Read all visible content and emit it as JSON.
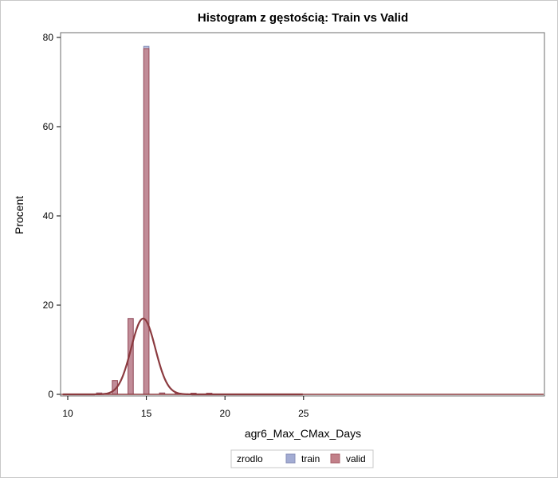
{
  "chart_data": {
    "type": "bar",
    "title": "Histogram z gęstością: Train vs Valid",
    "xlabel": "agr6_Max_CMax_Days",
    "ylabel": "Procent",
    "xlim": [
      9.5,
      25
    ],
    "ylim": [
      0,
      80
    ],
    "x_ticks": [
      10,
      15,
      20,
      25
    ],
    "y_ticks": [
      0,
      20,
      40,
      60,
      80
    ],
    "bin_width": 0.333,
    "legend": {
      "title": "zrodlo",
      "placement": "bottom-center",
      "entries": [
        "train",
        "valid"
      ]
    },
    "series": [
      {
        "name": "train",
        "color": "#a3acd3",
        "bins": [
          {
            "x": 12.0,
            "value": 0.3
          },
          {
            "x": 13.0,
            "value": 3.0
          },
          {
            "x": 14.0,
            "value": 17.0
          },
          {
            "x": 15.0,
            "value": 78.0
          },
          {
            "x": 16.0,
            "value": 0.3
          },
          {
            "x": 17.0,
            "value": 0.1
          },
          {
            "x": 18.0,
            "value": 0.1
          },
          {
            "x": 19.0,
            "value": 0.05
          }
        ]
      },
      {
        "name": "valid",
        "color": "#c28089",
        "bins": [
          {
            "x": 12.0,
            "value": 0.3
          },
          {
            "x": 13.0,
            "value": 3.1
          },
          {
            "x": 14.0,
            "value": 17.0
          },
          {
            "x": 15.0,
            "value": 77.5
          },
          {
            "x": 16.0,
            "value": 0.3
          },
          {
            "x": 17.0,
            "value": 0.1
          },
          {
            "x": 18.0,
            "value": 0.1
          },
          {
            "x": 19.0,
            "value": 0.05
          }
        ]
      }
    ],
    "density": {
      "type": "normal",
      "mean": 14.8,
      "sd": 0.77,
      "peak": 17.0,
      "color": "#8b3a3f"
    }
  }
}
